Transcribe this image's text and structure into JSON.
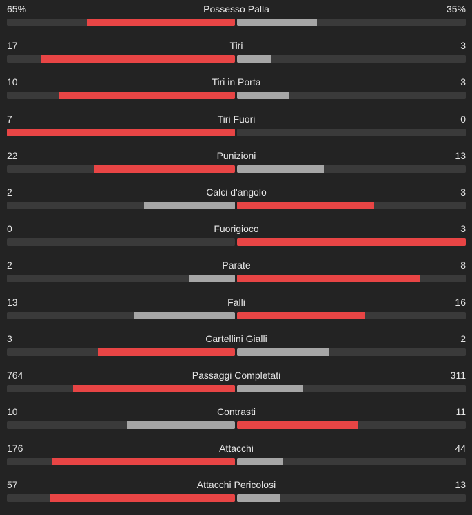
{
  "colors": {
    "leader": "#e84545",
    "trailer": "#a6a6a6",
    "track": "#3a3a3a",
    "background": "#232323",
    "text": "#e6e6e6"
  },
  "stats": [
    {
      "label": "Possesso Palla",
      "home": "65%",
      "away": "35%",
      "home_share": 0.65,
      "away_share": 0.35
    },
    {
      "label": "Tiri",
      "home": "17",
      "away": "3",
      "home_share": 0.85,
      "away_share": 0.15
    },
    {
      "label": "Tiri in Porta",
      "home": "10",
      "away": "3",
      "home_share": 0.77,
      "away_share": 0.23
    },
    {
      "label": "Tiri Fuori",
      "home": "7",
      "away": "0",
      "home_share": 1.0,
      "away_share": 0.0
    },
    {
      "label": "Punizioni",
      "home": "22",
      "away": "13",
      "home_share": 0.62,
      "away_share": 0.38
    },
    {
      "label": "Calci d'angolo",
      "home": "2",
      "away": "3",
      "home_share": 0.4,
      "away_share": 0.6
    },
    {
      "label": "Fuorigioco",
      "home": "0",
      "away": "3",
      "home_share": 0.0,
      "away_share": 1.0
    },
    {
      "label": "Parate",
      "home": "2",
      "away": "8",
      "home_share": 0.2,
      "away_share": 0.8
    },
    {
      "label": "Falli",
      "home": "13",
      "away": "16",
      "home_share": 0.44,
      "away_share": 0.56
    },
    {
      "label": "Cartellini Gialli",
      "home": "3",
      "away": "2",
      "home_share": 0.6,
      "away_share": 0.4
    },
    {
      "label": "Passaggi Completati",
      "home": "764",
      "away": "311",
      "home_share": 0.71,
      "away_share": 0.29
    },
    {
      "label": "Contrasti",
      "home": "10",
      "away": "11",
      "home_share": 0.47,
      "away_share": 0.53
    },
    {
      "label": "Attacchi",
      "home": "176",
      "away": "44",
      "home_share": 0.8,
      "away_share": 0.2
    },
    {
      "label": "Attacchi Pericolosi",
      "home": "57",
      "away": "13",
      "home_share": 0.81,
      "away_share": 0.19
    }
  ]
}
